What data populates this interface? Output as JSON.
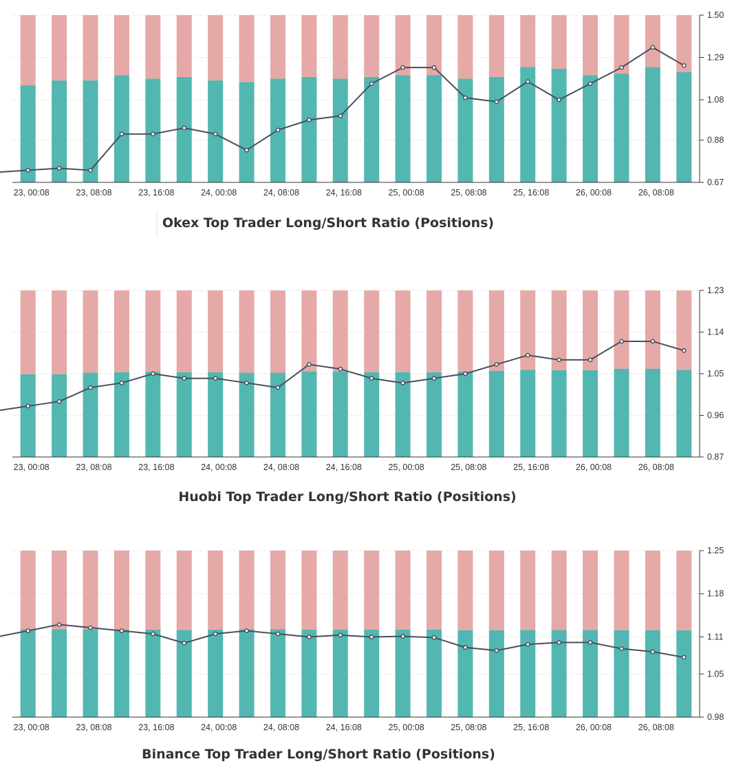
{
  "colors": {
    "long": "#52b7b0",
    "short": "#e5a9a8",
    "line": "#4a4e5c",
    "grid": "#e6e6e6",
    "axis": "#333333"
  },
  "chart_data": [
    {
      "type": "bar",
      "title": "Okex Top Trader Long/Short Ratio (Positions)",
      "xlabel": "",
      "ylabel": "",
      "x_tick_labels": [
        "23, 00:08",
        "23, 08:08",
        "23, 16:08",
        "24, 00:08",
        "24, 08:08",
        "24, 16:08",
        "25, 00:08",
        "25, 08:08",
        "25, 16:08",
        "26, 00:08",
        "26, 08:08"
      ],
      "y_ticks": [
        1.5,
        1.29,
        1.08,
        0.88,
        0.67
      ],
      "ylim": [
        0.67,
        1.5
      ],
      "series": [
        {
          "type": "bar",
          "values": [
            0.58,
            0.61,
            0.61,
            0.64,
            0.62,
            0.63,
            0.61,
            0.6,
            0.62,
            0.63,
            0.62,
            0.63,
            0.64,
            0.64,
            0.62,
            0.63,
            0.69,
            0.68,
            0.64,
            0.65,
            0.69,
            0.66
          ]
        },
        {
          "type": "bar",
          "values": [
            0.42,
            0.39,
            0.39,
            0.36,
            0.38,
            0.37,
            0.39,
            0.4,
            0.38,
            0.37,
            0.38,
            0.37,
            0.36,
            0.36,
            0.38,
            0.37,
            0.31,
            0.32,
            0.36,
            0.35,
            0.31,
            0.34
          ]
        },
        {
          "type": "line",
          "values": [
            0.73,
            0.74,
            0.73,
            0.91,
            0.91,
            0.94,
            0.91,
            0.83,
            0.93,
            0.98,
            1.0,
            1.16,
            1.24,
            1.24,
            1.09,
            1.07,
            1.17,
            1.08,
            1.16,
            1.24,
            1.34,
            1.25
          ]
        }
      ]
    },
    {
      "type": "bar",
      "title": "Huobi Top Trader Long/Short Ratio (Positions)",
      "xlabel": "",
      "ylabel": "",
      "x_tick_labels": [
        "23, 00:08",
        "23, 08:08",
        "23, 16:08",
        "24, 00:08",
        "24, 08:08",
        "24, 16:08",
        "25, 00:08",
        "25, 08:08",
        "25, 16:08",
        "26, 00:08",
        "26, 08:08"
      ],
      "y_ticks": [
        1.23,
        1.14,
        1.05,
        0.96,
        0.87
      ],
      "ylim": [
        0.87,
        1.23
      ],
      "series": [
        {
          "type": "bar",
          "values": [
            0.497,
            0.497,
            0.506,
            0.509,
            0.512,
            0.509,
            0.509,
            0.506,
            0.506,
            0.514,
            0.514,
            0.509,
            0.509,
            0.509,
            0.514,
            0.518,
            0.523,
            0.521,
            0.521,
            0.53,
            0.53,
            0.523
          ]
        },
        {
          "type": "bar",
          "values": [
            0.503,
            0.503,
            0.494,
            0.491,
            0.488,
            0.491,
            0.491,
            0.494,
            0.494,
            0.486,
            0.486,
            0.491,
            0.491,
            0.491,
            0.486,
            0.482,
            0.477,
            0.479,
            0.479,
            0.47,
            0.47,
            0.477
          ]
        },
        {
          "type": "line",
          "values": [
            0.98,
            0.99,
            1.02,
            1.03,
            1.05,
            1.04,
            1.04,
            1.03,
            1.02,
            1.07,
            1.06,
            1.04,
            1.03,
            1.04,
            1.05,
            1.07,
            1.09,
            1.08,
            1.08,
            1.12,
            1.12,
            1.1
          ]
        }
      ]
    },
    {
      "type": "bar",
      "title": "Binance Top Trader Long/Short Ratio (Positions)",
      "xlabel": "",
      "ylabel": "",
      "x_tick_labels": [
        "23, 00:08",
        "23, 08:08",
        "23, 16:08",
        "24, 00:08",
        "24, 08:08",
        "24, 16:08",
        "25, 00:08",
        "25, 08:08",
        "25, 16:08",
        "26, 00:08",
        "26, 08:08"
      ],
      "y_ticks": [
        1.25,
        1.18,
        1.11,
        1.05,
        0.98
      ],
      "ylim": [
        0.98,
        1.25
      ],
      "series": [
        {
          "type": "bar",
          "values": [
            0.528,
            0.528,
            0.527,
            0.527,
            0.526,
            0.523,
            0.526,
            0.527,
            0.527,
            0.525,
            0.526,
            0.525,
            0.525,
            0.525,
            0.522,
            0.522,
            0.523,
            0.523,
            0.523,
            0.522,
            0.522,
            0.521
          ]
        },
        {
          "type": "bar",
          "values": [
            0.472,
            0.472,
            0.473,
            0.473,
            0.474,
            0.477,
            0.474,
            0.473,
            0.473,
            0.475,
            0.474,
            0.475,
            0.475,
            0.475,
            0.478,
            0.478,
            0.477,
            0.477,
            0.477,
            0.478,
            0.478,
            0.479
          ]
        },
        {
          "type": "line",
          "values": [
            1.12,
            1.13,
            1.125,
            1.12,
            1.115,
            1.1,
            1.115,
            1.12,
            1.115,
            1.11,
            1.113,
            1.11,
            1.111,
            1.109,
            1.093,
            1.088,
            1.098,
            1.101,
            1.101,
            1.091,
            1.086,
            1.077
          ]
        }
      ]
    }
  ]
}
